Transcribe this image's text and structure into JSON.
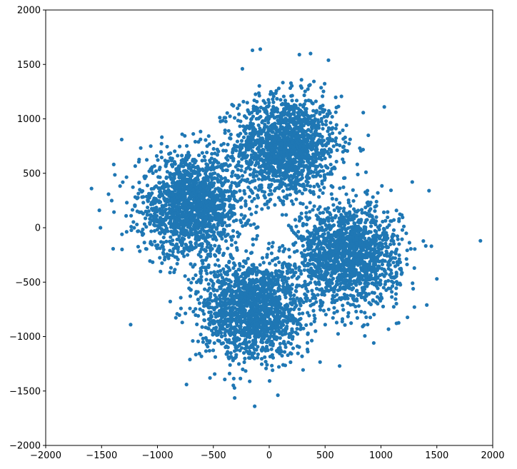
{
  "chart_data": {
    "type": "scatter",
    "title": "",
    "xlabel": "",
    "ylabel": "",
    "xlim": [
      -2000,
      2000
    ],
    "ylim": [
      -2000,
      2000
    ],
    "x_ticks": [
      -2000,
      -1500,
      -1000,
      -500,
      0,
      500,
      1000,
      1500,
      2000
    ],
    "y_ticks": [
      -2000,
      -1500,
      -1000,
      -500,
      0,
      500,
      1000,
      1500,
      2000
    ],
    "x_tick_labels": [
      "−2000",
      "−1500",
      "−1000",
      "−500",
      "0",
      "500",
      "1000",
      "1500",
      "2000"
    ],
    "y_tick_labels": [
      "−2000",
      "−1500",
      "−1000",
      "−500",
      "0",
      "500",
      "1000",
      "1500",
      "2000"
    ],
    "grid": false,
    "legend": "none",
    "series_color": "#1f77b4",
    "series": [
      {
        "clusters": [
          {
            "center": [
              150,
              750
            ],
            "spread": [
              230,
              230
            ],
            "count": 1600
          },
          {
            "center": [
              -700,
              200
            ],
            "spread": [
              230,
              230
            ],
            "count": 1600
          },
          {
            "center": [
              700,
              -250
            ],
            "spread": [
              230,
              230
            ],
            "count": 1600
          },
          {
            "center": [
              -150,
              -750
            ],
            "spread": [
              230,
              230
            ],
            "count": 1600
          }
        ],
        "outliers": [
          [
            1890,
            -120
          ],
          [
            -1590,
            360
          ],
          [
            -130,
            -1640
          ],
          [
            -80,
            1640
          ],
          [
            -150,
            1630
          ],
          [
            370,
            1600
          ],
          [
            270,
            1590
          ],
          [
            1030,
            1110
          ],
          [
            -1510,
            0
          ],
          [
            -1520,
            160
          ],
          [
            1430,
            340
          ],
          [
            1500,
            -470
          ],
          [
            -1240,
            -890
          ],
          [
            -740,
            -1440
          ],
          [
            630,
            -1270
          ],
          [
            -240,
            1460
          ],
          [
            1410,
            -710
          ],
          [
            -1320,
            810
          ],
          [
            1280,
            420
          ],
          [
            -530,
            -1380
          ]
        ]
      }
    ]
  }
}
